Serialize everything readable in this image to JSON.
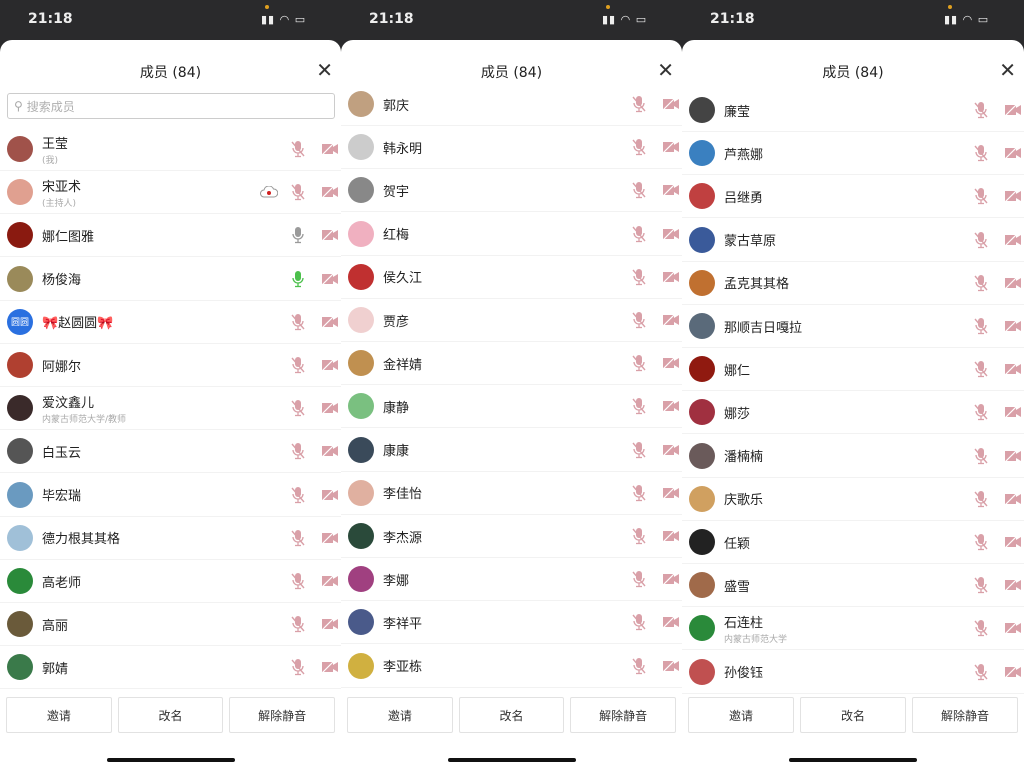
{
  "status": {
    "time": "21:18"
  },
  "header": {
    "title": "成员 (84)"
  },
  "search": {
    "placeholder": "搜索成员"
  },
  "buttons": {
    "invite": "邀请",
    "rename": "改名",
    "unmute": "解除静音"
  },
  "colors": {
    "muted": "#d9a0a8",
    "unmuted": "#9a9a9a",
    "speaking": "#4cc04c",
    "recording": "#d02020"
  },
  "panels": [
    {
      "has_search": true,
      "first_row_top": 88,
      "members": [
        {
          "name": "王莹",
          "sub": "(我)",
          "mic": "muted",
          "avatar": "#a0524a"
        },
        {
          "name": "宋亚术",
          "sub": "(主持人)",
          "mic": "muted",
          "recording": true,
          "avatar": "#e0a090"
        },
        {
          "name": "娜仁图雅",
          "mic": "unmuted",
          "avatar": "#8a1a10"
        },
        {
          "name": "杨俊海",
          "mic": "speaking",
          "avatar": "#9a8a5a"
        },
        {
          "name": "🎀赵圆圆🎀",
          "mic": "muted",
          "avatar": "#2a70e0",
          "avatar_text": "圆圆"
        },
        {
          "name": "阿娜尔",
          "mic": "muted",
          "avatar": "#b04030"
        },
        {
          "name": "爱汶鑫儿",
          "sub": "内蒙古师范大学/教师",
          "mic": "muted",
          "avatar": "#3a2a2a"
        },
        {
          "name": "白玉云",
          "mic": "muted",
          "avatar": "#555"
        },
        {
          "name": "毕宏瑞",
          "mic": "muted",
          "avatar": "#6a9ac0"
        },
        {
          "name": "德力根其其格",
          "mic": "muted",
          "avatar": "#a0c0d8"
        },
        {
          "name": "高老师",
          "mic": "muted",
          "avatar": "#2a8a3a"
        },
        {
          "name": "高丽",
          "mic": "muted",
          "avatar": "#6a5a3a"
        },
        {
          "name": "郭婧",
          "mic": "muted",
          "avatar": "#3a7a4a"
        }
      ]
    },
    {
      "has_search": false,
      "first_row_top": 43,
      "members": [
        {
          "name": "郭庆",
          "mic": "muted",
          "avatar": "#c0a080"
        },
        {
          "name": "韩永明",
          "mic": "muted",
          "avatar": "#ccc"
        },
        {
          "name": "贺宇",
          "mic": "muted",
          "avatar": "#888"
        },
        {
          "name": "红梅",
          "mic": "muted",
          "avatar": "#f0b0c0"
        },
        {
          "name": "侯久江",
          "mic": "muted",
          "avatar": "#c03030"
        },
        {
          "name": "贾彦",
          "mic": "muted",
          "avatar": "#f0d0d0"
        },
        {
          "name": "金祥婧",
          "mic": "muted",
          "avatar": "#c09050"
        },
        {
          "name": "康静",
          "mic": "muted",
          "avatar": "#7ac080"
        },
        {
          "name": "康康",
          "mic": "muted",
          "avatar": "#3a4a5a"
        },
        {
          "name": "李佳怡",
          "mic": "muted",
          "avatar": "#e0b0a0"
        },
        {
          "name": "李杰源",
          "mic": "muted",
          "avatar": "#2a4a3a"
        },
        {
          "name": "李娜",
          "mic": "muted",
          "avatar": "#a04080"
        },
        {
          "name": "李祥平",
          "mic": "muted",
          "avatar": "#4a5a8a"
        },
        {
          "name": "李亚栋",
          "mic": "muted",
          "avatar": "#d0b040"
        }
      ]
    },
    {
      "has_search": false,
      "first_row_top": 49,
      "members": [
        {
          "name": "廉莹",
          "mic": "muted",
          "avatar": "#444"
        },
        {
          "name": "芦燕娜",
          "mic": "muted",
          "avatar": "#3a80c0"
        },
        {
          "name": "吕继勇",
          "mic": "muted",
          "avatar": "#c04040"
        },
        {
          "name": "蒙古草原",
          "mic": "muted",
          "avatar": "#3a5a9a"
        },
        {
          "name": "孟克其其格",
          "mic": "muted",
          "avatar": "#c07030"
        },
        {
          "name": "那顺吉日嘎拉",
          "mic": "muted",
          "avatar": "#5a6a7a"
        },
        {
          "name": "娜仁",
          "mic": "muted",
          "avatar": "#901a10"
        },
        {
          "name": "娜莎",
          "mic": "muted",
          "avatar": "#a03040"
        },
        {
          "name": "潘楠楠",
          "mic": "muted",
          "avatar": "#6a5a5a"
        },
        {
          "name": "庆歌乐",
          "mic": "muted",
          "avatar": "#d0a060"
        },
        {
          "name": "任颖",
          "mic": "muted",
          "avatar": "#222"
        },
        {
          "name": "盛雪",
          "mic": "muted",
          "avatar": "#a06a4a"
        },
        {
          "name": "石连柱",
          "sub": "内蒙古师范大学",
          "mic": "muted",
          "avatar": "#2a8a3a"
        },
        {
          "name": "孙俊钰",
          "mic": "muted",
          "avatar": "#c05050"
        }
      ]
    }
  ]
}
